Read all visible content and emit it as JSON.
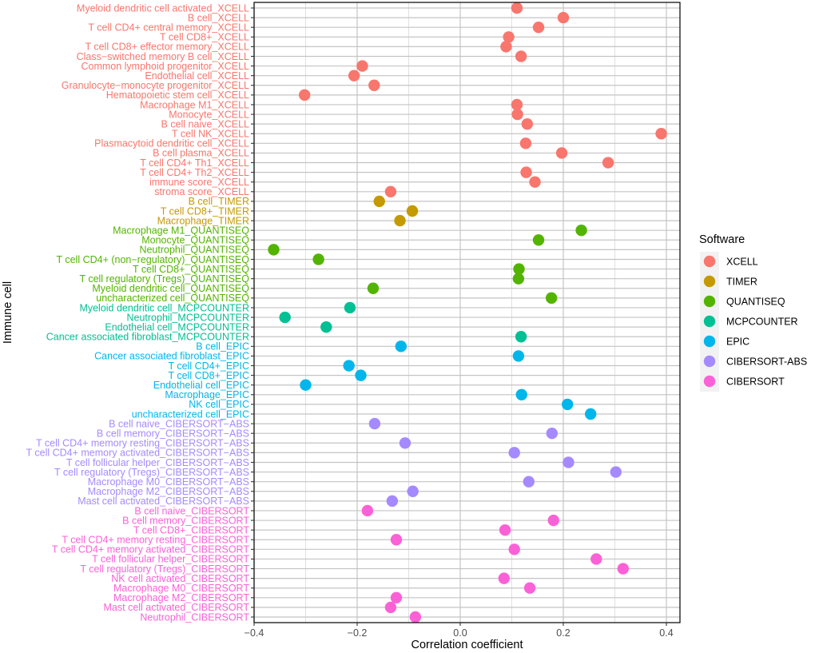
{
  "chart_data": {
    "type": "scatter",
    "title": "",
    "xlabel": "Correlation coefficient",
    "ylabel": "Immune cell",
    "xlim": [
      -0.41,
      0.42
    ],
    "xticks": [
      -0.4,
      -0.2,
      0.0,
      0.2,
      0.4
    ],
    "xtick_labels": [
      "−0.4",
      "−0.2",
      "0.0",
      "0.2",
      "0.4"
    ],
    "grid": true,
    "legend": {
      "title": "Software",
      "position": "right",
      "entries": [
        {
          "name": "XCELL",
          "color": "#F8766D"
        },
        {
          "name": "TIMER",
          "color": "#C49A00"
        },
        {
          "name": "QUANTISEQ",
          "color": "#53B400"
        },
        {
          "name": "MCPCOUNTER",
          "color": "#00C094"
        },
        {
          "name": "EPIC",
          "color": "#00B6EB"
        },
        {
          "name": "CIBERSORT-ABS",
          "color": "#A58AFF"
        },
        {
          "name": "CIBERSORT",
          "color": "#FB61D7"
        }
      ]
    },
    "points": [
      {
        "label": "Myeloid dendritic cell activated_XCELL",
        "software": "XCELL",
        "value": 0.11
      },
      {
        "label": "B cell_XCELL",
        "software": "XCELL",
        "value": 0.2
      },
      {
        "label": "T cell CD4+ central memory_XCELL",
        "software": "XCELL",
        "value": 0.152
      },
      {
        "label": "T cell CD8+_XCELL",
        "software": "XCELL",
        "value": 0.094
      },
      {
        "label": "T cell CD8+ effector memory_XCELL",
        "software": "XCELL",
        "value": 0.089
      },
      {
        "label": "Class−switched memory B cell_XCELL",
        "software": "XCELL",
        "value": 0.118
      },
      {
        "label": "Common lymphoid progenitor_XCELL",
        "software": "XCELL",
        "value": -0.19
      },
      {
        "label": "Endothelial cell_XCELL",
        "software": "XCELL",
        "value": -0.206
      },
      {
        "label": "Granulocyte−monocyte progenitor_XCELL",
        "software": "XCELL",
        "value": -0.167
      },
      {
        "label": "Hematopoietic stem cell_XCELL",
        "software": "XCELL",
        "value": -0.302
      },
      {
        "label": "Macrophage M1_XCELL",
        "software": "XCELL",
        "value": 0.11
      },
      {
        "label": "Monocyte_XCELL",
        "software": "XCELL",
        "value": 0.111
      },
      {
        "label": "B cell naive_XCELL",
        "software": "XCELL",
        "value": 0.13
      },
      {
        "label": "T cell NK_XCELL",
        "software": "XCELL",
        "value": 0.39
      },
      {
        "label": "Plasmacytoid dendritic cell_XCELL",
        "software": "XCELL",
        "value": 0.127
      },
      {
        "label": "B cell plasma_XCELL",
        "software": "XCELL",
        "value": 0.197
      },
      {
        "label": "T cell CD4+ Th1_XCELL",
        "software": "XCELL",
        "value": 0.287
      },
      {
        "label": "T cell CD4+ Th2_XCELL",
        "software": "XCELL",
        "value": 0.128
      },
      {
        "label": "immune score_XCELL",
        "software": "XCELL",
        "value": 0.145
      },
      {
        "label": "stroma score_XCELL",
        "software": "XCELL",
        "value": -0.135
      },
      {
        "label": "B cell_TIMER",
        "software": "TIMER",
        "value": -0.157
      },
      {
        "label": "T cell CD8+_TIMER",
        "software": "TIMER",
        "value": -0.093
      },
      {
        "label": "Macrophage_TIMER",
        "software": "TIMER",
        "value": -0.117
      },
      {
        "label": "Macrophage M1_QUANTISEQ",
        "software": "QUANTISEQ",
        "value": 0.235
      },
      {
        "label": "Monocyte_QUANTISEQ",
        "software": "QUANTISEQ",
        "value": 0.152
      },
      {
        "label": "Neutrophil_QUANTISEQ",
        "software": "QUANTISEQ",
        "value": -0.362
      },
      {
        "label": "T cell CD4+ (non−regulatory)_QUANTISEQ",
        "software": "QUANTISEQ",
        "value": -0.275
      },
      {
        "label": "T cell CD8+_QUANTISEQ",
        "software": "QUANTISEQ",
        "value": 0.114
      },
      {
        "label": "T cell regulatory (Tregs)_QUANTISEQ",
        "software": "QUANTISEQ",
        "value": 0.113
      },
      {
        "label": "Myeloid dendritic cell_QUANTISEQ",
        "software": "QUANTISEQ",
        "value": -0.169
      },
      {
        "label": "uncharacterized cell_QUANTISEQ",
        "software": "QUANTISEQ",
        "value": 0.177
      },
      {
        "label": "Myeloid dendritic cell_MCPCOUNTER",
        "software": "MCPCOUNTER",
        "value": -0.214
      },
      {
        "label": "Neutrophil_MCPCOUNTER",
        "software": "MCPCOUNTER",
        "value": -0.34
      },
      {
        "label": "Endothelial cell_MCPCOUNTER",
        "software": "MCPCOUNTER",
        "value": -0.26
      },
      {
        "label": "Cancer associated fibroblast_MCPCOUNTER",
        "software": "MCPCOUNTER",
        "value": 0.118
      },
      {
        "label": "B cell_EPIC",
        "software": "EPIC",
        "value": -0.115
      },
      {
        "label": "Cancer associated fibroblast_EPIC",
        "software": "EPIC",
        "value": 0.113
      },
      {
        "label": "T cell CD4+_EPIC",
        "software": "EPIC",
        "value": -0.216
      },
      {
        "label": "T cell CD8+_EPIC",
        "software": "EPIC",
        "value": -0.193
      },
      {
        "label": "Endothelial cell_EPIC",
        "software": "EPIC",
        "value": -0.3
      },
      {
        "label": "Macrophage_EPIC",
        "software": "EPIC",
        "value": 0.119
      },
      {
        "label": "NK cell_EPIC",
        "software": "EPIC",
        "value": 0.208
      },
      {
        "label": "uncharacterized cell_EPIC",
        "software": "EPIC",
        "value": 0.253
      },
      {
        "label": "B cell naive_CIBERSORT−ABS",
        "software": "CIBERSORT-ABS",
        "value": -0.166
      },
      {
        "label": "B cell memory_CIBERSORT−ABS",
        "software": "CIBERSORT-ABS",
        "value": 0.178
      },
      {
        "label": "T cell CD4+ memory resting_CIBERSORT−ABS",
        "software": "CIBERSORT-ABS",
        "value": -0.107
      },
      {
        "label": "T cell CD4+ memory activated_CIBERSORT−ABS",
        "software": "CIBERSORT-ABS",
        "value": 0.105
      },
      {
        "label": "T cell follicular helper_CIBERSORT−ABS",
        "software": "CIBERSORT-ABS",
        "value": 0.21
      },
      {
        "label": "T cell regulatory (Tregs)_CIBERSORT−ABS",
        "software": "CIBERSORT-ABS",
        "value": 0.302
      },
      {
        "label": "Macrophage M0_CIBERSORT−ABS",
        "software": "CIBERSORT-ABS",
        "value": 0.133
      },
      {
        "label": "Macrophage M2_CIBERSORT−ABS",
        "software": "CIBERSORT-ABS",
        "value": -0.092
      },
      {
        "label": "Mast cell activated_CIBERSORT−ABS",
        "software": "CIBERSORT-ABS",
        "value": -0.132
      },
      {
        "label": "B cell naive_CIBERSORT",
        "software": "CIBERSORT",
        "value": -0.18
      },
      {
        "label": "B cell memory_CIBERSORT",
        "software": "CIBERSORT",
        "value": 0.181
      },
      {
        "label": "T cell CD8+_CIBERSORT",
        "software": "CIBERSORT",
        "value": 0.087
      },
      {
        "label": "T cell CD4+ memory resting_CIBERSORT",
        "software": "CIBERSORT",
        "value": -0.124
      },
      {
        "label": "T cell CD4+ memory activated_CIBERSORT",
        "software": "CIBERSORT",
        "value": 0.105
      },
      {
        "label": "T cell follicular helper_CIBERSORT",
        "software": "CIBERSORT",
        "value": 0.264
      },
      {
        "label": "T cell regulatory (Tregs)_CIBERSORT",
        "software": "CIBERSORT",
        "value": 0.316
      },
      {
        "label": "NK cell activated_CIBERSORT",
        "software": "CIBERSORT",
        "value": 0.085
      },
      {
        "label": "Macrophage M0_CIBERSORT",
        "software": "CIBERSORT",
        "value": 0.135
      },
      {
        "label": "Macrophage M2_CIBERSORT",
        "software": "CIBERSORT",
        "value": -0.124
      },
      {
        "label": "Mast cell activated_CIBERSORT",
        "software": "CIBERSORT",
        "value": -0.135
      },
      {
        "label": "Neutrophil_CIBERSORT",
        "software": "CIBERSORT",
        "value": -0.087
      }
    ]
  }
}
